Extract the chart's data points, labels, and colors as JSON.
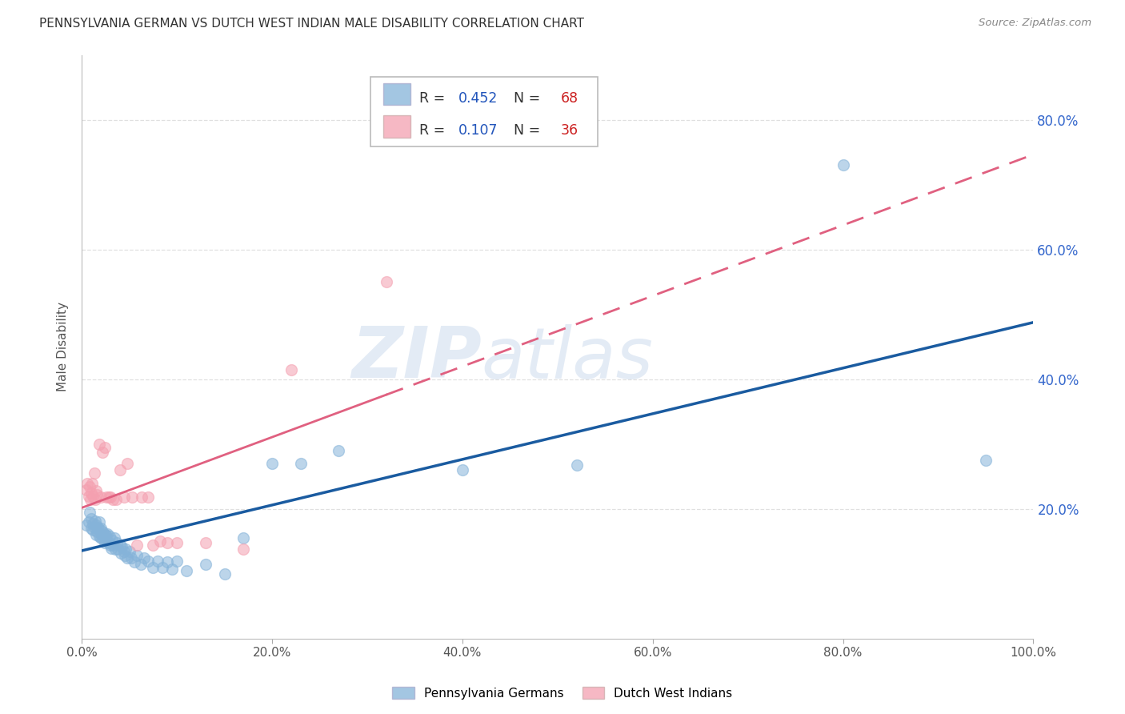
{
  "title": "PENNSYLVANIA GERMAN VS DUTCH WEST INDIAN MALE DISABILITY CORRELATION CHART",
  "source": "Source: ZipAtlas.com",
  "ylabel": "Male Disability",
  "xlabel": "",
  "xlim": [
    0.0,
    1.0
  ],
  "ylim": [
    0.0,
    0.9
  ],
  "xticks": [
    0.0,
    0.2,
    0.4,
    0.6,
    0.8,
    1.0
  ],
  "xtick_labels": [
    "0.0%",
    "20.0%",
    "40.0%",
    "60.0%",
    "80.0%",
    "100.0%"
  ],
  "yticks": [
    0.2,
    0.4,
    0.6,
    0.8
  ],
  "ytick_labels": [
    "20.0%",
    "40.0%",
    "60.0%",
    "80.0%"
  ],
  "blue_color": "#85B3D9",
  "pink_color": "#F4A0B0",
  "blue_line_color": "#1A5BA0",
  "pink_line_color": "#E06080",
  "blue_r": 0.452,
  "blue_n": 68,
  "pink_r": 0.107,
  "pink_n": 36,
  "watermark_zip": "ZIP",
  "watermark_atlas": "atlas",
  "background_color": "#FFFFFF",
  "grid_color": "#DDDDDD",
  "blue_x": [
    0.005,
    0.007,
    0.008,
    0.01,
    0.01,
    0.012,
    0.012,
    0.013,
    0.014,
    0.015,
    0.015,
    0.016,
    0.017,
    0.018,
    0.018,
    0.019,
    0.02,
    0.02,
    0.021,
    0.022,
    0.022,
    0.023,
    0.024,
    0.024,
    0.025,
    0.026,
    0.027,
    0.028,
    0.029,
    0.03,
    0.031,
    0.032,
    0.033,
    0.034,
    0.035,
    0.037,
    0.038,
    0.04,
    0.041,
    0.042,
    0.044,
    0.045,
    0.046,
    0.048,
    0.05,
    0.052,
    0.055,
    0.058,
    0.062,
    0.065,
    0.07,
    0.075,
    0.08,
    0.085,
    0.09,
    0.095,
    0.1,
    0.11,
    0.13,
    0.15,
    0.17,
    0.2,
    0.23,
    0.27,
    0.4,
    0.52,
    0.8,
    0.95
  ],
  "blue_y": [
    0.175,
    0.18,
    0.195,
    0.17,
    0.185,
    0.168,
    0.178,
    0.172,
    0.182,
    0.16,
    0.175,
    0.165,
    0.172,
    0.18,
    0.158,
    0.168,
    0.155,
    0.17,
    0.162,
    0.155,
    0.165,
    0.158,
    0.16,
    0.148,
    0.16,
    0.152,
    0.162,
    0.148,
    0.158,
    0.145,
    0.14,
    0.152,
    0.145,
    0.155,
    0.138,
    0.148,
    0.138,
    0.145,
    0.132,
    0.142,
    0.135,
    0.128,
    0.138,
    0.125,
    0.135,
    0.125,
    0.118,
    0.128,
    0.115,
    0.125,
    0.12,
    0.11,
    0.12,
    0.11,
    0.118,
    0.108,
    0.12,
    0.105,
    0.115,
    0.1,
    0.155,
    0.27,
    0.27,
    0.29,
    0.26,
    0.268,
    0.73,
    0.275
  ],
  "pink_x": [
    0.005,
    0.006,
    0.007,
    0.008,
    0.009,
    0.01,
    0.011,
    0.012,
    0.013,
    0.014,
    0.015,
    0.016,
    0.018,
    0.02,
    0.022,
    0.024,
    0.026,
    0.028,
    0.03,
    0.033,
    0.036,
    0.04,
    0.044,
    0.048,
    0.053,
    0.058,
    0.063,
    0.07,
    0.075,
    0.082,
    0.09,
    0.1,
    0.13,
    0.17,
    0.22,
    0.32
  ],
  "pink_y": [
    0.23,
    0.24,
    0.22,
    0.235,
    0.215,
    0.225,
    0.24,
    0.22,
    0.255,
    0.215,
    0.228,
    0.222,
    0.3,
    0.218,
    0.288,
    0.295,
    0.218,
    0.218,
    0.218,
    0.215,
    0.215,
    0.26,
    0.218,
    0.27,
    0.218,
    0.145,
    0.218,
    0.218,
    0.145,
    0.15,
    0.148,
    0.148,
    0.148,
    0.138,
    0.415,
    0.55
  ]
}
